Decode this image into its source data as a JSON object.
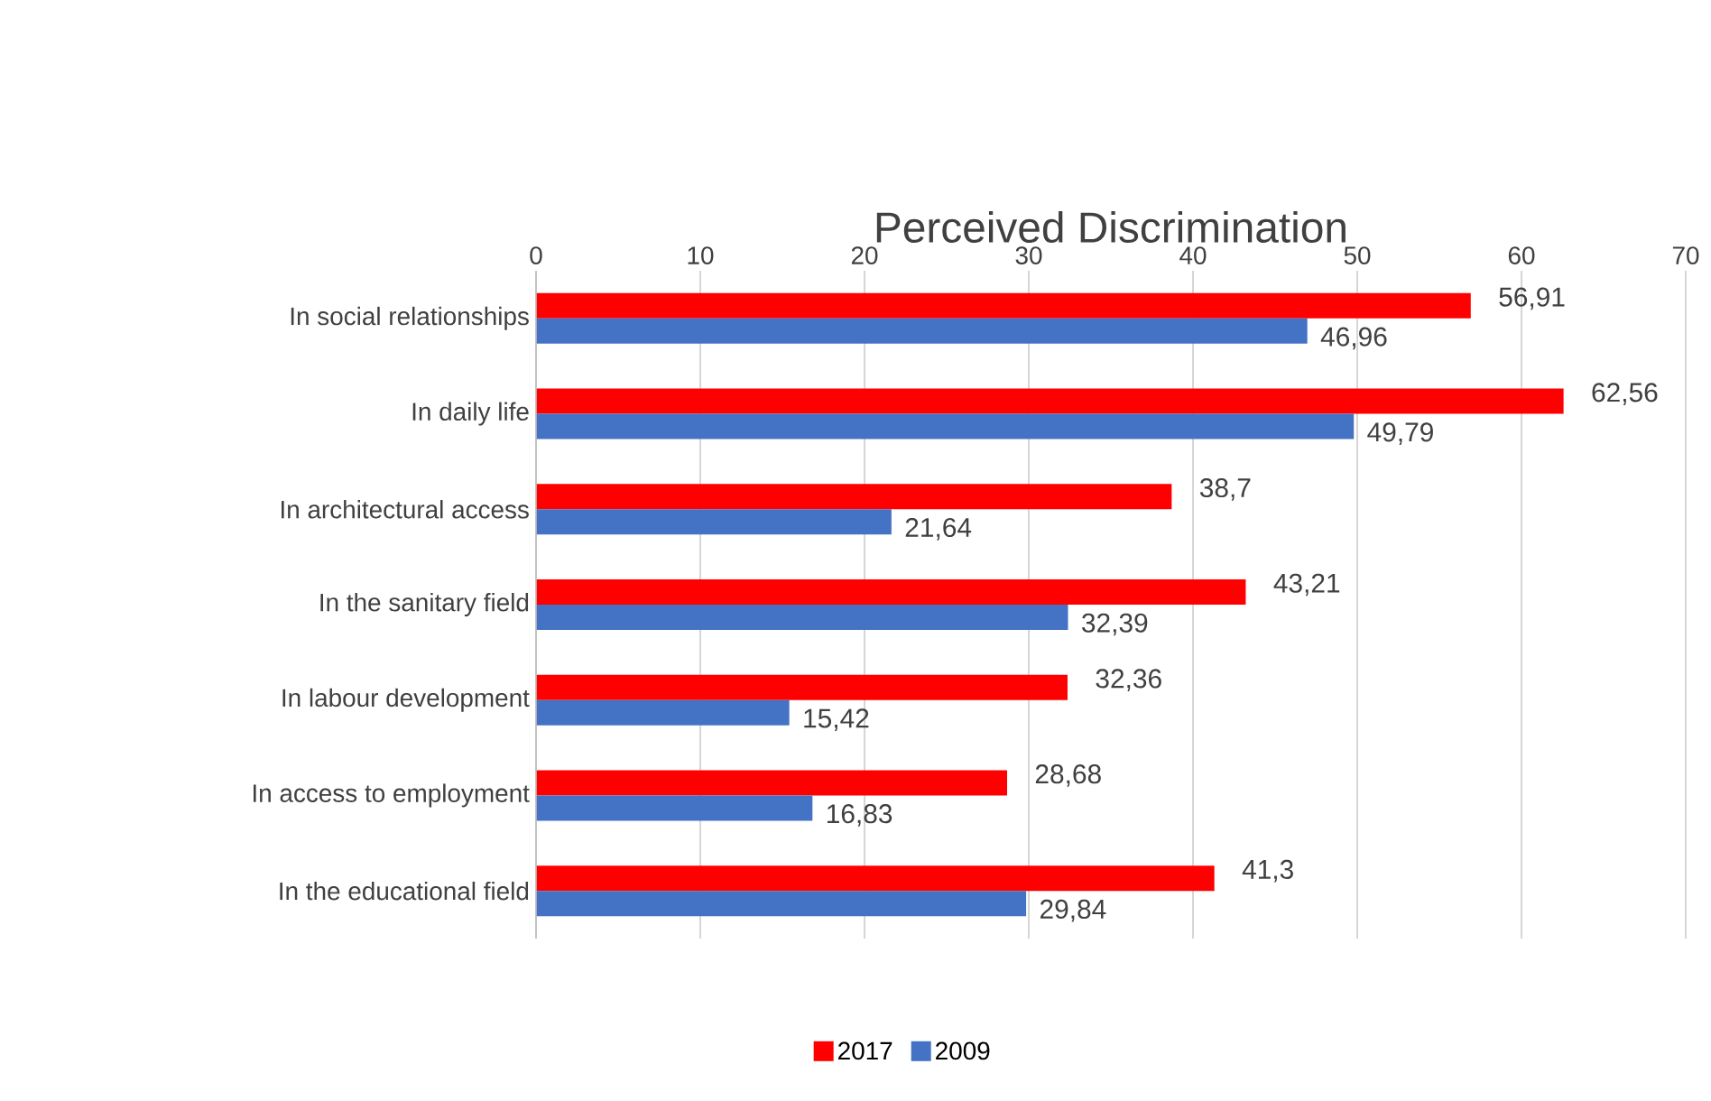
{
  "chart_data": {
    "type": "bar",
    "orientation": "horizontal",
    "title": "Perceived Discrimination",
    "categories": [
      "In social relationships",
      "In daily life",
      "In architectural access",
      "In the sanitary field",
      "In labour development",
      "In access to employment",
      "In the educational field"
    ],
    "series": [
      {
        "name": "2017",
        "color": "#ff0000",
        "values": [
          56.91,
          62.56,
          38.7,
          43.21,
          32.36,
          28.68,
          41.3
        ],
        "value_labels": [
          "56,91",
          "62,56",
          "38,7",
          "43,21",
          "32,36",
          "28,68",
          "41,3"
        ]
      },
      {
        "name": "2009",
        "color": "#4472c4",
        "values": [
          46.96,
          49.79,
          21.64,
          32.39,
          15.42,
          16.83,
          29.84
        ],
        "value_labels": [
          "46,96",
          "49,79",
          "21,64",
          "32,39",
          "15,42",
          "16,83",
          "29,84"
        ]
      }
    ],
    "xlim": [
      0,
      70
    ],
    "xticks": [
      0,
      10,
      20,
      30,
      40,
      50,
      60,
      70
    ],
    "grid": "x",
    "legend": "bottom"
  }
}
